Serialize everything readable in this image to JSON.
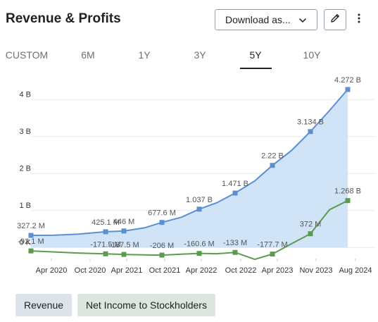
{
  "header": {
    "title": "Revenue & Profits",
    "download_label": "Download as...",
    "download_icon": "chevron-down-icon",
    "edit_icon": "pencil-icon",
    "more_icon": "vertical-dots-icon"
  },
  "tabs": [
    {
      "label": "CUSTOM"
    },
    {
      "label": "6M"
    },
    {
      "label": "1Y"
    },
    {
      "label": "3Y"
    },
    {
      "label": "5Y"
    },
    {
      "label": "10Y"
    }
  ],
  "active_tab": "5Y",
  "legend": {
    "revenue_label": "Revenue",
    "net_label": "Net Income to Stockholders"
  },
  "colors": {
    "revenue_line": "#5b8fd1",
    "revenue_fill": "#cfe2f7",
    "net_line": "#5b9a4f",
    "grid": "#e7e9ec",
    "axis_text": "#333333",
    "label_text": "#555555"
  },
  "chart_data": {
    "type": "area",
    "title": "",
    "xlabel": "",
    "ylabel": "",
    "ylim": [
      -0.3,
      4.5
    ],
    "y_ticks": [
      {
        "value": 0,
        "label": "0 K"
      },
      {
        "value": 1,
        "label": "1 B"
      },
      {
        "value": 2,
        "label": "2 B"
      },
      {
        "value": 3,
        "label": "3 B"
      },
      {
        "value": 4,
        "label": "4 B"
      }
    ],
    "x_ticks": [
      "Apr 2020",
      "Oct 2020",
      "Apr 2021",
      "Oct 2021",
      "Apr 2022",
      "Oct 2022",
      "Apr 2023",
      "Nov 2023",
      "Aug 2024"
    ],
    "grid": true,
    "series": [
      {
        "name": "Revenue",
        "type": "area",
        "points": [
          {
            "x": "2019-07",
            "y": 0.3272,
            "label": "327.2 M"
          },
          {
            "x": "2020-01",
            "y": 0.33
          },
          {
            "x": "2020-07",
            "y": 0.36
          },
          {
            "x": "2020-10",
            "y": 0.4251,
            "label": "425.1 M"
          },
          {
            "x": "2021-01",
            "y": 0.446,
            "label": "446 M"
          },
          {
            "x": "2021-04",
            "y": 0.53
          },
          {
            "x": "2021-07",
            "y": 0.6776,
            "label": "677.6 M"
          },
          {
            "x": "2021-10",
            "y": 0.82
          },
          {
            "x": "2022-01",
            "y": 1.037,
            "label": "1.037 B"
          },
          {
            "x": "2022-04",
            "y": 1.21
          },
          {
            "x": "2022-07",
            "y": 1.471,
            "label": "1.471 B"
          },
          {
            "x": "2022-10",
            "y": 1.8
          },
          {
            "x": "2023-01",
            "y": 2.22,
            "label": "2.22 B"
          },
          {
            "x": "2023-04",
            "y": 2.62
          },
          {
            "x": "2023-07",
            "y": 3.134,
            "label": "3.134 B"
          },
          {
            "x": "2023-10",
            "y": 3.7
          },
          {
            "x": "2024-01",
            "y": 4.272,
            "label": "4.272 B"
          }
        ]
      },
      {
        "name": "Net Income to Stockholders",
        "type": "line",
        "points": [
          {
            "x": "2019-07",
            "y": -0.0921,
            "label": "-92.1 M"
          },
          {
            "x": "2020-01",
            "y": -0.12
          },
          {
            "x": "2020-07",
            "y": -0.15
          },
          {
            "x": "2020-10",
            "y": -0.1715,
            "label": "-171.5 M"
          },
          {
            "x": "2021-01",
            "y": -0.1875,
            "label": "-187.5 M"
          },
          {
            "x": "2021-04",
            "y": -0.2
          },
          {
            "x": "2021-07",
            "y": -0.206,
            "label": "-206 M"
          },
          {
            "x": "2021-10",
            "y": -0.18
          },
          {
            "x": "2022-01",
            "y": -0.1606,
            "label": "-160.6 M"
          },
          {
            "x": "2022-04",
            "y": -0.17
          },
          {
            "x": "2022-07",
            "y": -0.133,
            "label": "-133 M"
          },
          {
            "x": "2022-10",
            "y": -0.32
          },
          {
            "x": "2023-01",
            "y": -0.1777,
            "label": "-177.7 M"
          },
          {
            "x": "2023-04",
            "y": 0.1
          },
          {
            "x": "2023-07",
            "y": 0.372,
            "label": "372 M"
          },
          {
            "x": "2023-10",
            "y": 1.02
          },
          {
            "x": "2024-01",
            "y": 1.268,
            "label": "1.268 B"
          }
        ]
      }
    ]
  }
}
